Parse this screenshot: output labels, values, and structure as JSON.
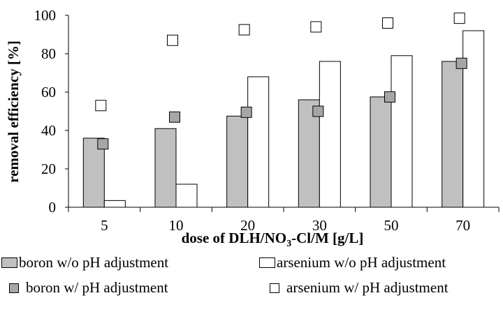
{
  "chart_data": {
    "type": "bar",
    "categories": [
      "5",
      "10",
      "20",
      "30",
      "50",
      "70"
    ],
    "bar_series": [
      {
        "name": "boron w/o pH adjustment",
        "values": [
          36,
          41,
          47.5,
          56,
          57.5,
          76
        ],
        "color": "#c0c0c0"
      },
      {
        "name": "arsenium w/o pH adjustment",
        "values": [
          3.5,
          12,
          68,
          76,
          79,
          92
        ],
        "color": "#ffffff"
      }
    ],
    "marker_series": [
      {
        "name": "boron w/ pH adjustment",
        "values": [
          33,
          47,
          49.5,
          50,
          57.5,
          75
        ],
        "color": "#a6a6a6"
      },
      {
        "name": "arsenium w/ pH adjustment",
        "values": [
          53,
          87,
          92.5,
          94,
          96,
          98.5
        ],
        "color": "#ffffff"
      }
    ],
    "ylim": [
      0,
      100
    ],
    "yticks": [
      0,
      20,
      40,
      60,
      80,
      100
    ],
    "ylabel": "removal efficiency [%]",
    "xlabel": "dose of DLH/NO3-Cl/M [g/L]",
    "legend_position": "bottom"
  }
}
